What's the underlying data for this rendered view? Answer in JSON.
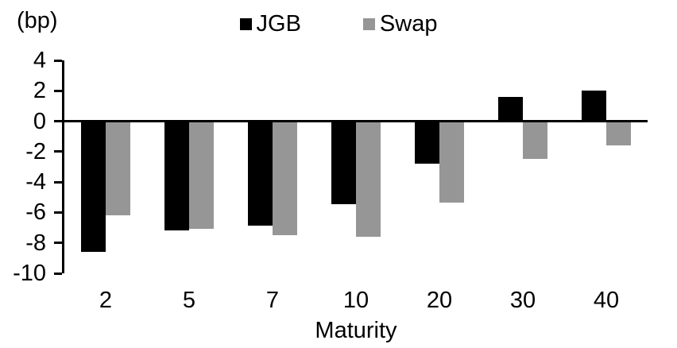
{
  "chart_data": {
    "type": "bar",
    "title": "",
    "unit_label": "(bp)",
    "xlabel": "Maturity",
    "ylabel": "",
    "categories": [
      "2",
      "5",
      "7",
      "10",
      "20",
      "30",
      "40"
    ],
    "series": [
      {
        "name": "JGB",
        "color": "#000000",
        "values": [
          -8.5,
          -7.1,
          -6.8,
          -5.4,
          -2.7,
          1.6,
          2.0
        ]
      },
      {
        "name": "Swap",
        "color": "#969696",
        "values": [
          -6.1,
          -7.0,
          -7.4,
          -7.5,
          -5.3,
          -2.4,
          -1.5
        ]
      }
    ],
    "ylim": [
      -10,
      4
    ],
    "ytick_step": 2,
    "yticks": [
      "4",
      "2",
      "0",
      "-2",
      "-4",
      "-6",
      "-8",
      "-10"
    ],
    "grid": false,
    "legend_position": "top-center",
    "axis_color": "#000000"
  }
}
